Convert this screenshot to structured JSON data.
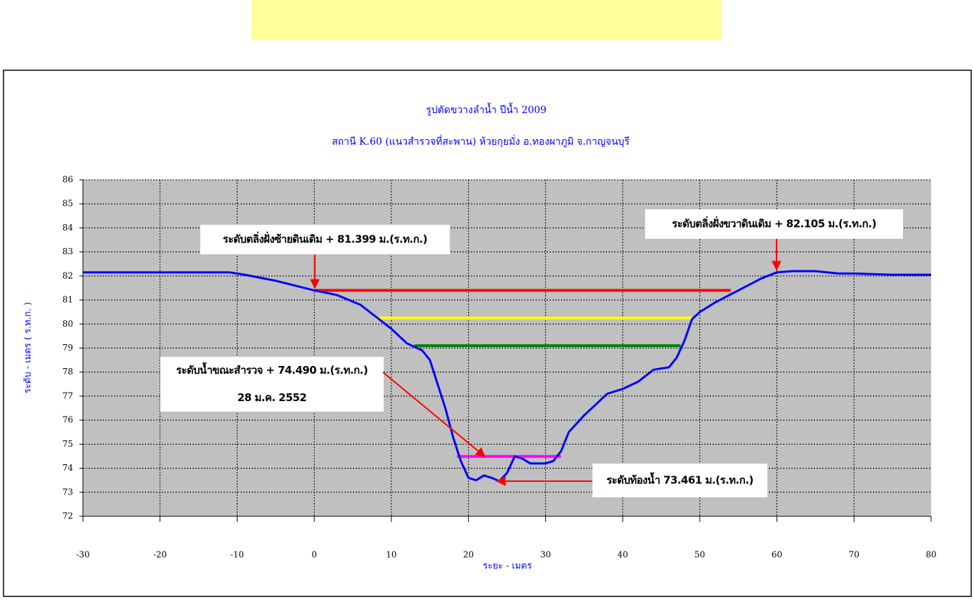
{
  "chart_data": {
    "type": "line",
    "title": "รูปตัดขวางลำน้ำ  ปีน้ำ 2009",
    "subtitle": "สถานี K.60 (แนวสำรวจที่สะพาน)  ห้วยกุยมั่ง  อ.ทองผาภูมิ  จ.กาญจนบุรี",
    "x_label": "ระยะ - เมตร",
    "y_label": "ระดับ - เมตร ( ร.ท.ก. )",
    "xlim": [
      -30,
      80
    ],
    "xticks": [
      -30,
      -20,
      -10,
      0,
      10,
      20,
      30,
      40,
      50,
      60,
      70,
      80
    ],
    "ylim": [
      72,
      86
    ],
    "yticks": [
      72,
      73,
      74,
      75,
      76,
      77,
      78,
      79,
      80,
      81,
      82,
      83,
      84,
      85,
      86
    ],
    "grid": true,
    "series": [
      {
        "color": "#0000ff",
        "x": [
          -30,
          -11,
          -9,
          -5,
          0,
          3,
          6,
          8,
          10,
          12,
          14,
          15,
          16,
          17,
          18,
          19,
          20,
          21,
          22,
          23,
          24,
          25,
          26,
          27,
          28,
          30,
          31,
          32,
          33,
          35,
          37,
          38,
          40,
          42,
          44,
          46,
          47,
          48,
          49,
          50,
          52,
          55,
          58,
          60,
          62,
          65,
          68,
          70,
          75,
          80
        ],
        "values": [
          82.15,
          82.15,
          82.05,
          81.8,
          81.4,
          81.2,
          80.8,
          80.3,
          79.8,
          79.2,
          78.9,
          78.5,
          77.5,
          76.5,
          75.3,
          74.3,
          73.6,
          73.5,
          73.7,
          73.6,
          73.46,
          73.8,
          74.5,
          74.4,
          74.2,
          74.2,
          74.3,
          74.7,
          75.5,
          76.2,
          76.8,
          77.1,
          77.3,
          77.6,
          78.1,
          78.2,
          78.6,
          79.3,
          80.2,
          80.5,
          80.9,
          81.4,
          81.9,
          82.15,
          82.2,
          82.2,
          82.1,
          82.1,
          82.05,
          82.05
        ]
      },
      {
        "color": "#ff0000",
        "x": [
          0,
          54
        ],
        "values": [
          81.4,
          81.4
        ]
      },
      {
        "color": "#ffff00",
        "x": [
          8,
          49
        ],
        "values": [
          80.25,
          80.25
        ]
      },
      {
        "color": "#008000",
        "x": [
          13,
          47.5
        ],
        "values": [
          79.1,
          79.1
        ]
      },
      {
        "color": "#ff00ff",
        "x": [
          18.5,
          32
        ],
        "values": [
          74.49,
          74.49
        ]
      }
    ],
    "annotations": [
      {
        "lines": [
          "ระดับตลิ่งฝั่งซ้ายดินเดิม + 81.399 ม.(ร.ท.ก.)"
        ]
      },
      {
        "lines": [
          "ระดับตลิ่งฝั่งขวาดินเดิม + 82.105 ม.(ร.ท.ก.)"
        ]
      },
      {
        "lines": [
          "ระดับน้ำขณะสำรวจ + 74.490 ม.(ร.ท.ก.)",
          "28  ม.ค. 2552"
        ]
      },
      {
        "lines": [
          "ระดับท้องน้ำ 73.461 ม.(ร.ท.ก.)"
        ]
      }
    ]
  }
}
